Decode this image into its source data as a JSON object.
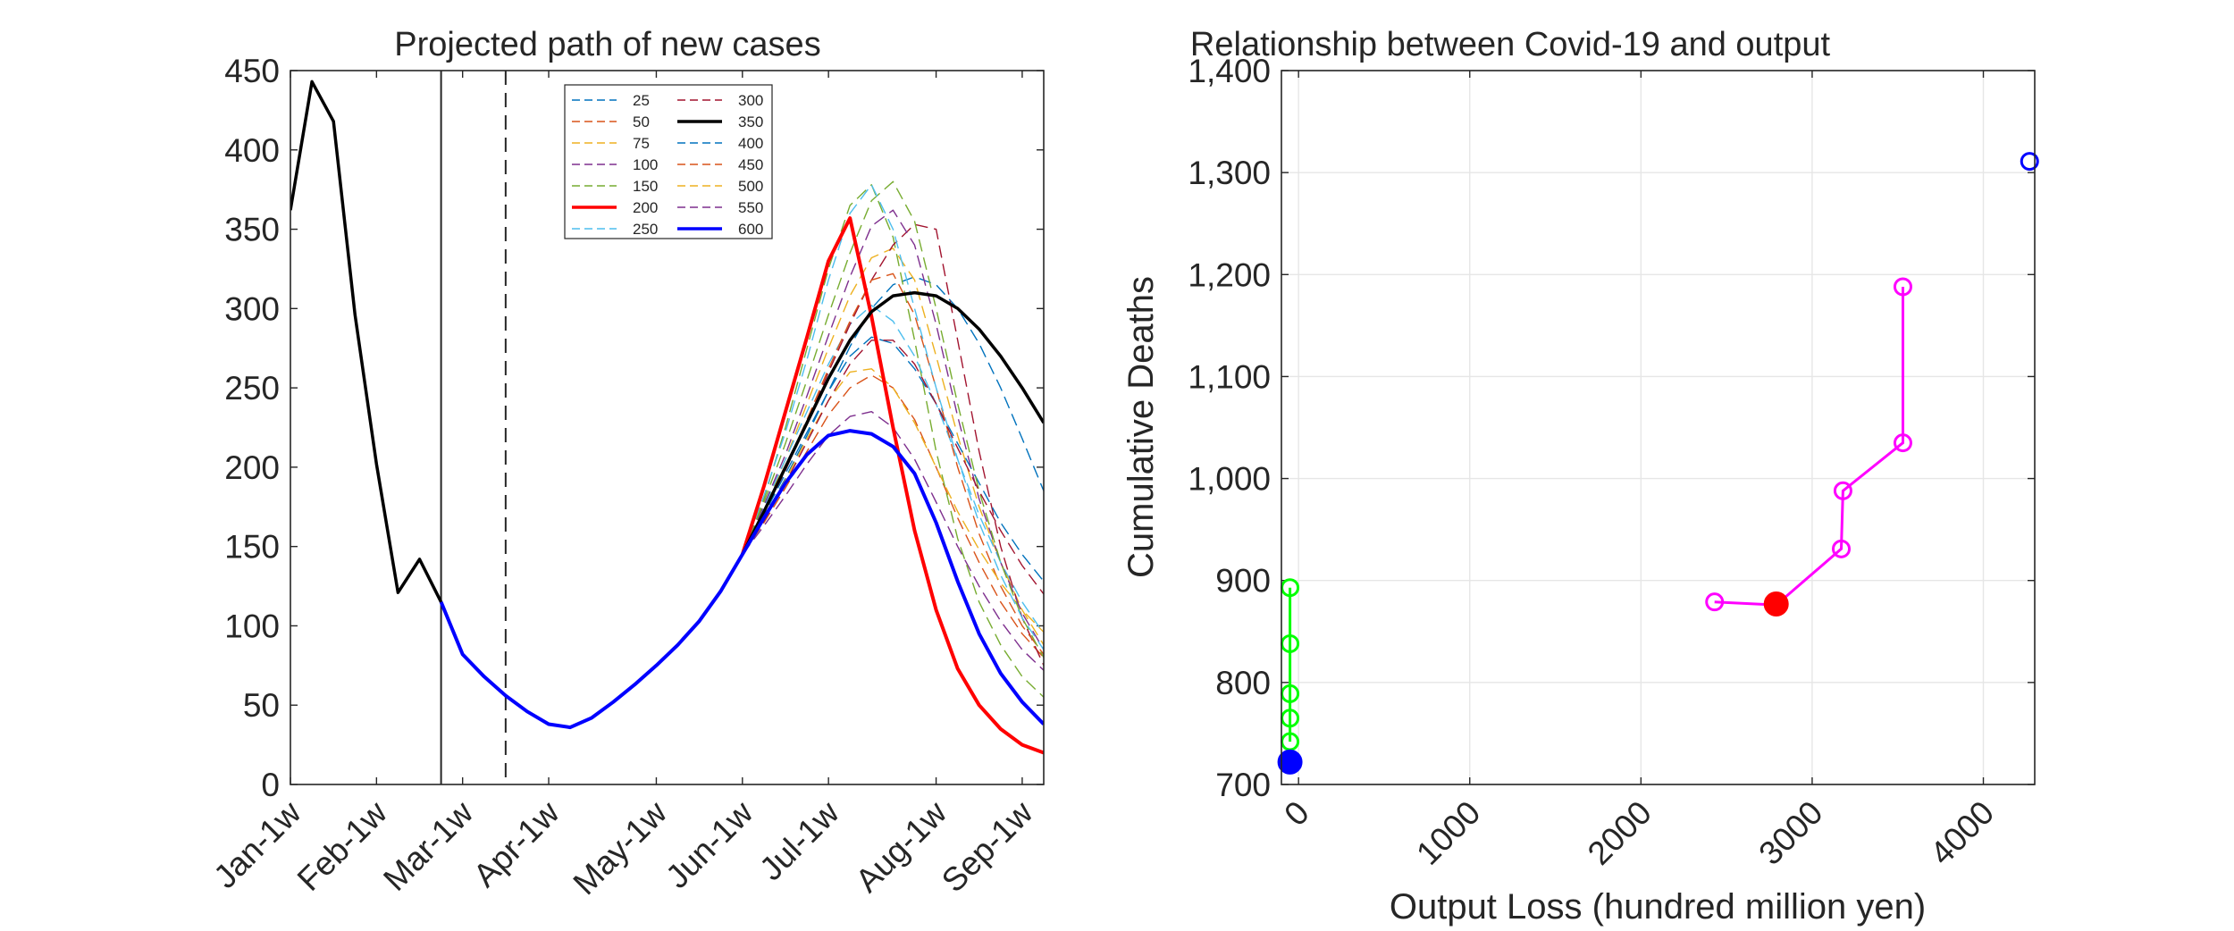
{
  "chart_data": [
    {
      "type": "line",
      "title": "Projected path of new cases",
      "xlabel": "",
      "ylabel": "",
      "ylim": [
        0,
        450
      ],
      "yticks": [
        0,
        50,
        100,
        150,
        200,
        250,
        300,
        350,
        400,
        450
      ],
      "xlim": [
        0,
        35
      ],
      "xtick_positions": [
        0,
        4,
        8,
        12,
        17,
        21,
        25,
        30,
        34
      ],
      "xtick_labels": [
        "Jan-1w",
        "Feb-1w",
        "Mar-1w",
        "Apr-1w",
        "May-1w",
        "Jun-1w",
        "Jul-1w",
        "Aug-1w",
        "Sep-1w"
      ],
      "vlines": [
        {
          "x": 7,
          "style": "solid",
          "color": "#262626"
        },
        {
          "x": 10,
          "style": "dashed",
          "color": "#262626"
        }
      ],
      "legend_position": "top-center",
      "legend_columns": 2,
      "series": [
        {
          "name": "25",
          "color": "#0072BD",
          "style": "dashed",
          "x": [
            21,
            22,
            23,
            24,
            25,
            26,
            27,
            28,
            29,
            30,
            31,
            32,
            33,
            34,
            35
          ],
          "y": [
            145,
            168,
            193,
            220,
            248,
            276,
            300,
            315,
            320,
            315,
            300,
            278,
            250,
            218,
            185
          ]
        },
        {
          "name": "50",
          "color": "#D95319",
          "style": "dashed",
          "x": [
            21,
            22,
            23,
            24,
            25,
            26,
            27,
            28,
            29,
            30,
            31,
            32,
            33,
            34,
            35
          ],
          "y": [
            145,
            165,
            187,
            210,
            233,
            250,
            258,
            250,
            230,
            200,
            168,
            140,
            115,
            95,
            80
          ]
        },
        {
          "name": "75",
          "color": "#EDB120",
          "style": "dashed",
          "x": [
            21,
            22,
            23,
            24,
            25,
            26,
            27,
            28,
            29,
            30,
            31,
            32,
            33,
            34,
            35
          ],
          "y": [
            145,
            172,
            205,
            240,
            275,
            308,
            332,
            338,
            318,
            270,
            220,
            175,
            140,
            110,
            88
          ]
        },
        {
          "name": "100",
          "color": "#7E2F8E",
          "style": "dashed",
          "x": [
            21,
            22,
            23,
            24,
            25,
            26,
            27,
            28,
            29,
            30,
            31,
            32,
            33,
            34,
            35
          ],
          "y": [
            145,
            163,
            182,
            202,
            220,
            232,
            235,
            225,
            205,
            178,
            150,
            125,
            103,
            85,
            72
          ]
        },
        {
          "name": "150",
          "color": "#77AC30",
          "style": "dashed",
          "x": [
            21,
            22,
            23,
            24,
            25,
            26,
            27,
            28,
            29,
            30,
            31,
            32,
            33,
            34,
            35
          ],
          "y": [
            145,
            180,
            225,
            275,
            325,
            365,
            378,
            345,
            280,
            210,
            155,
            115,
            88,
            68,
            55
          ]
        },
        {
          "name": "200",
          "color": "#FF0000",
          "style": "solid",
          "width": 4,
          "x": [
            21,
            22,
            23,
            24,
            25,
            26,
            27,
            28,
            29,
            30,
            31,
            32,
            33,
            34,
            35
          ],
          "y": [
            145,
            188,
            235,
            282,
            330,
            357,
            295,
            225,
            160,
            110,
            73,
            50,
            35,
            25,
            20
          ]
        },
        {
          "name": "250",
          "color": "#4DBEEE",
          "style": "dashed",
          "x": [
            21,
            22,
            23,
            24,
            25,
            26,
            27,
            28,
            29,
            30,
            31,
            32,
            33,
            34,
            35
          ],
          "y": [
            145,
            175,
            205,
            235,
            265,
            290,
            302,
            292,
            270,
            240,
            205,
            170,
            140,
            115,
            95
          ]
        },
        {
          "name": "300",
          "color": "#A2142F",
          "style": "dashed",
          "x": [
            21,
            22,
            23,
            24,
            25,
            26,
            27,
            28,
            29,
            30,
            31,
            32,
            33,
            34,
            35
          ],
          "y": [
            145,
            170,
            198,
            228,
            260,
            290,
            318,
            340,
            353,
            350,
            280,
            210,
            150,
            105,
            75
          ]
        },
        {
          "name": "350",
          "color": "#000000",
          "style": "solid",
          "width": 3.5,
          "x": [
            21,
            22,
            23,
            24,
            25,
            26,
            27,
            28,
            29,
            30,
            31,
            32,
            33,
            34,
            35
          ],
          "y": [
            145,
            172,
            200,
            228,
            256,
            280,
            298,
            308,
            310,
            308,
            300,
            287,
            270,
            250,
            228
          ]
        },
        {
          "name": "400",
          "color": "#0072BD",
          "style": "dashed",
          "x": [
            21,
            22,
            23,
            24,
            25,
            26,
            27,
            28,
            29,
            30,
            31,
            32,
            33,
            34,
            35
          ],
          "y": [
            145,
            170,
            196,
            222,
            248,
            270,
            282,
            278,
            262,
            240,
            215,
            190,
            165,
            145,
            128
          ]
        },
        {
          "name": "450",
          "color": "#D95319",
          "style": "dashed",
          "x": [
            21,
            22,
            23,
            24,
            25,
            26,
            27,
            28,
            29,
            30,
            31,
            32,
            33,
            34,
            35
          ],
          "y": [
            145,
            172,
            200,
            230,
            262,
            292,
            318,
            322,
            296,
            250,
            200,
            158,
            125,
            100,
            82
          ]
        },
        {
          "name": "500",
          "color": "#EDB120",
          "style": "dashed",
          "x": [
            21,
            22,
            23,
            24,
            25,
            26,
            27,
            28,
            29,
            30,
            31,
            32,
            33,
            34,
            35
          ],
          "y": [
            145,
            168,
            192,
            218,
            242,
            260,
            262,
            250,
            228,
            200,
            172,
            148,
            127,
            110,
            96
          ]
        },
        {
          "name": "550",
          "color": "#7E2F8E",
          "style": "dashed",
          "x": [
            21,
            22,
            23,
            24,
            25,
            26,
            27,
            28,
            29,
            30,
            31,
            32,
            33,
            34,
            35
          ],
          "y": [
            145,
            176,
            208,
            245,
            283,
            320,
            352,
            362,
            340,
            290,
            232,
            180,
            140,
            108,
            85
          ]
        },
        {
          "name": "600",
          "color": "#0000FF",
          "style": "solid",
          "width": 4,
          "x": [
            7,
            8,
            9,
            10,
            11,
            12,
            13,
            14,
            15,
            16,
            17,
            18,
            19,
            20,
            21,
            22,
            23,
            24,
            25,
            26,
            27,
            28,
            29,
            30,
            31,
            32,
            33,
            34,
            35
          ],
          "y": [
            115,
            82,
            68,
            56,
            46,
            38,
            36,
            42,
            52,
            63,
            75,
            88,
            103,
            122,
            145,
            168,
            190,
            208,
            220,
            223,
            221,
            213,
            196,
            165,
            128,
            95,
            70,
            52,
            38
          ]
        },
        {
          "name": "",
          "color": "#000000",
          "style": "solid",
          "width": 3.5,
          "x": [
            0,
            1,
            2,
            3,
            4,
            5,
            6,
            7
          ],
          "y": [
            362,
            443,
            418,
            296,
            202,
            121,
            142,
            115
          ]
        },
        {
          "name": "",
          "color": "#77AC30",
          "style": "dashed",
          "x": [
            21,
            22,
            23,
            24,
            25,
            26,
            27,
            28,
            29,
            30,
            31,
            32,
            33,
            34,
            35
          ],
          "y": [
            145,
            178,
            215,
            255,
            296,
            335,
            368,
            380,
            355,
            300,
            240,
            185,
            140,
            105,
            80
          ]
        },
        {
          "name": "",
          "color": "#4DBEEE",
          "style": "dashed",
          "x": [
            21,
            22,
            23,
            24,
            25,
            26,
            27,
            28,
            29,
            30,
            31,
            32,
            33,
            34,
            35
          ],
          "y": [
            145,
            182,
            222,
            268,
            318,
            360,
            378,
            350,
            300,
            250,
            205,
            165,
            132,
            105,
            85
          ]
        },
        {
          "name": "",
          "color": "#A2142F",
          "style": "dashed",
          "x": [
            21,
            22,
            23,
            24,
            25,
            26,
            27,
            28,
            29,
            30,
            31,
            32,
            33,
            34,
            35
          ],
          "y": [
            145,
            166,
            190,
            216,
            242,
            265,
            280,
            280,
            265,
            240,
            212,
            185,
            160,
            138,
            120
          ]
        }
      ]
    },
    {
      "type": "scatter",
      "title": "Relationship between Covid-19 and output",
      "xlabel": "Output Loss (hundred million yen)",
      "ylabel": "Cumulative Deaths",
      "xlim": [
        -100,
        4300
      ],
      "ylim": [
        700,
        1400
      ],
      "xticks": [
        0,
        1000,
        2000,
        3000,
        4000
      ],
      "xtick_labels": [
        "0",
        "1000",
        "2000",
        "3000",
        "4000"
      ],
      "yticks": [
        700,
        800,
        900,
        1000,
        1100,
        1200,
        1300,
        1400
      ],
      "ytick_labels": [
        "700",
        "800",
        "900",
        "1,000",
        "1,100",
        "1,200",
        "1,300",
        "1,400"
      ],
      "grid": true,
      "series": [
        {
          "color": "#00FF00",
          "marker": "open-circle",
          "line": true,
          "x": [
            -50,
            -50,
            -50,
            -50,
            -50
          ],
          "y": [
            742,
            765,
            789,
            838,
            893
          ]
        },
        {
          "color": "#FF00FF",
          "marker": "open-circle",
          "line": true,
          "x": [
            2430,
            2790,
            3170,
            3180,
            3530,
            3530
          ],
          "y": [
            879,
            876,
            931,
            988,
            1035,
            1188
          ]
        },
        {
          "color": "#FF0000",
          "marker": "filled-circle",
          "line": false,
          "x": [
            2790
          ],
          "y": [
            877
          ]
        },
        {
          "color": "#0000FF",
          "marker": "filled-circle",
          "line": false,
          "x": [
            -50
          ],
          "y": [
            722
          ]
        },
        {
          "color": "#0000FF",
          "marker": "open-circle",
          "line": false,
          "x": [
            4270
          ],
          "y": [
            1311
          ]
        }
      ]
    }
  ]
}
